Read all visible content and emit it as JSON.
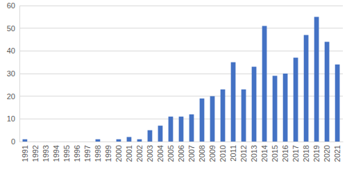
{
  "chart_data": {
    "type": "bar",
    "categories": [
      "1991",
      "1992",
      "1993",
      "1994",
      "1995",
      "1996",
      "1997",
      "1998",
      "1999",
      "2000",
      "2001",
      "2002",
      "2003",
      "2004",
      "2005",
      "2006",
      "2007",
      "2008",
      "2009",
      "2010",
      "2011",
      "2012",
      "2013",
      "2014",
      "2015",
      "2016",
      "2017",
      "2018",
      "2019",
      "2020",
      "2021"
    ],
    "values": [
      1,
      0,
      0,
      0,
      0,
      0,
      0,
      1,
      0,
      1,
      2,
      1,
      5,
      7,
      11,
      11,
      12,
      19,
      20,
      23,
      35,
      23,
      33,
      51,
      29,
      30,
      37,
      47,
      55,
      44,
      34
    ],
    "color": "#4472c4",
    "ylim": [
      0,
      60
    ],
    "yticks": [
      0,
      10,
      20,
      30,
      40,
      50,
      60
    ],
    "grid": true
  }
}
